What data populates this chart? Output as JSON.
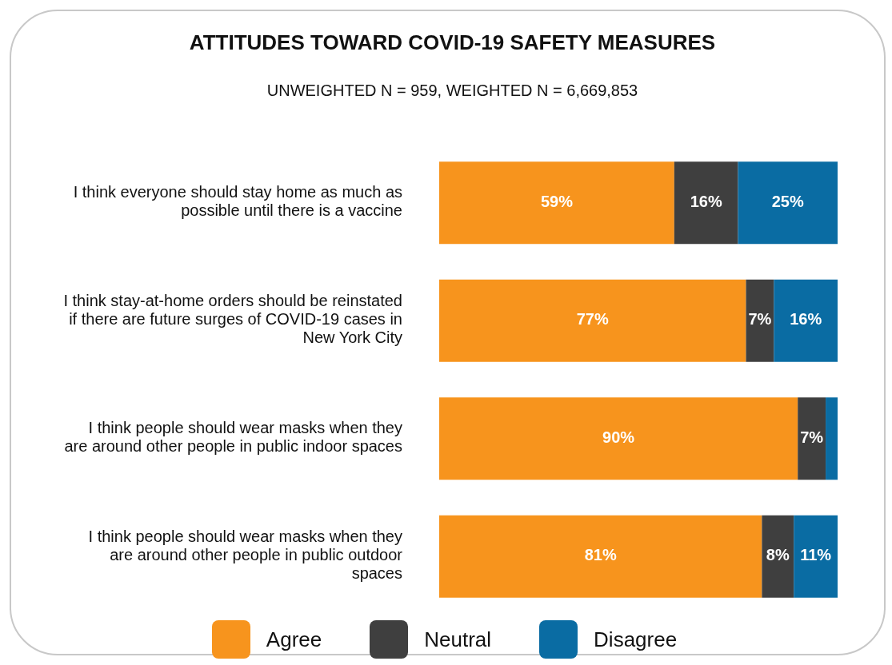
{
  "chart_data": {
    "type": "bar",
    "title": "ATTITUDES TOWARD COVID-19 SAFETY MEASURES",
    "subtitle": "UNWEIGHTED N = 959, WEIGHTED N = 6,669,853",
    "orientation": "horizontal",
    "stacked": true,
    "xlim": [
      0,
      100
    ],
    "tick_labels": "y",
    "legend": "bottom",
    "categories": [
      "I think everyone should stay home as much as possible until there is a vaccine",
      "I think stay-at-home orders should be reinstated if there are future surges of COVID-19 cases in New York City",
      "I think people should wear masks when they are around other people in public indoor spaces",
      "I think people should wear masks when they are around other people in public outdoor spaces"
    ],
    "series": [
      {
        "name": "Agree",
        "color": "#f7941d",
        "values": [
          59,
          77,
          90,
          81
        ],
        "value_labels": [
          "59%",
          "77%",
          "90%",
          "81%"
        ]
      },
      {
        "name": "Neutral",
        "color": "#3f3f3f",
        "values": [
          16,
          7,
          7,
          8
        ],
        "value_labels": [
          "16%",
          "7%",
          "7%",
          "8%"
        ]
      },
      {
        "name": "Disagree",
        "color": "#0a6ca3",
        "values": [
          25,
          16,
          3,
          11
        ],
        "value_labels": [
          "25%",
          "16%",
          null,
          "11%"
        ]
      }
    ]
  }
}
